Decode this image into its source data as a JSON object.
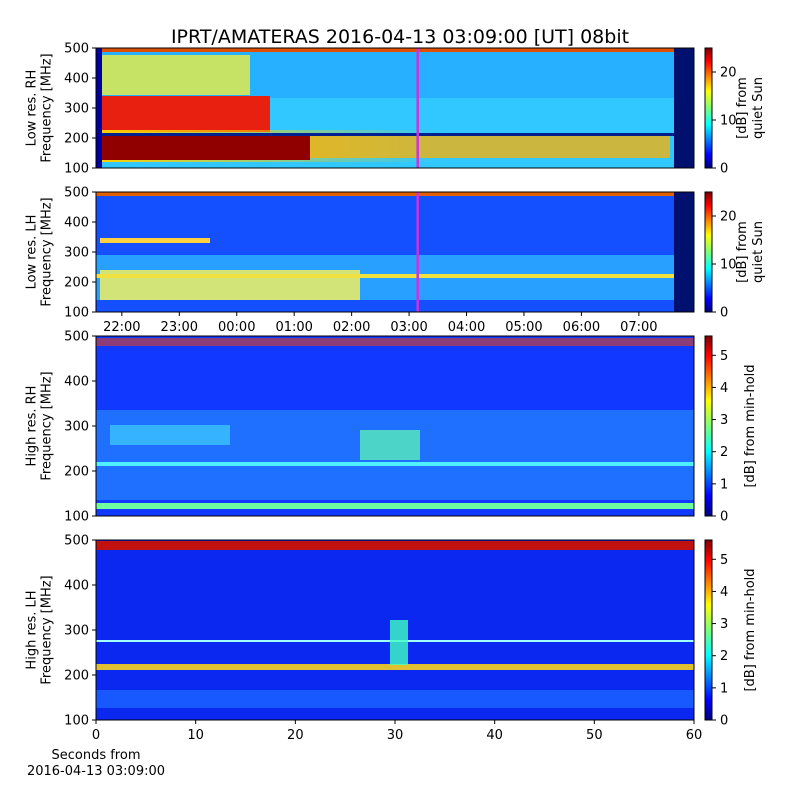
{
  "chart_data": [
    {
      "type": "spectrogram",
      "title": "IPRT/AMATERAS 2016-04-13 03:09:00 [UT]   08bit",
      "ylabel": [
        "Low res. RH",
        "Frequency [MHz]"
      ],
      "xlim": [
        21.55,
        31.96
      ],
      "ylim": [
        100,
        500
      ],
      "yticks": [
        100,
        200,
        300,
        400,
        500
      ],
      "clim": [
        0,
        25
      ],
      "cticks": [
        0,
        10,
        20
      ],
      "clabel": [
        "[dB] from",
        "quiet Sun"
      ],
      "marker_x": 27.15,
      "marker_color": "#cc33dd"
    },
    {
      "type": "spectrogram",
      "ylabel": [
        "Low res. LH",
        "Frequency [MHz]"
      ],
      "xlim": [
        21.55,
        31.96
      ],
      "ylim": [
        100,
        500
      ],
      "yticks": [
        100,
        200,
        300,
        400,
        500
      ],
      "xticks": [
        {
          "value": 22,
          "label": "22:00"
        },
        {
          "value": 23,
          "label": "23:00"
        },
        {
          "value": 24,
          "label": "00:00"
        },
        {
          "value": 25,
          "label": "01:00"
        },
        {
          "value": 26,
          "label": "02:00"
        },
        {
          "value": 27,
          "label": "03:00"
        },
        {
          "value": 28,
          "label": "04:00"
        },
        {
          "value": 29,
          "label": "05:00"
        },
        {
          "value": 30,
          "label": "06:00"
        },
        {
          "value": 31,
          "label": "07:00"
        }
      ],
      "clim": [
        0,
        25
      ],
      "cticks": [
        0,
        10,
        20
      ],
      "clabel": [
        "[dB] from",
        "quiet Sun"
      ],
      "marker_x": 27.15,
      "marker_color": "#cc33dd"
    },
    {
      "type": "spectrogram",
      "ylabel": [
        "High res. RH",
        "Frequency [MHz]"
      ],
      "xlim": [
        0,
        60
      ],
      "ylim": [
        100,
        500
      ],
      "yticks": [
        100,
        200,
        300,
        400,
        500
      ],
      "clim": [
        0,
        5.6
      ],
      "cticks": [
        0,
        1,
        2,
        3,
        4,
        5
      ],
      "clabel": [
        "[dB] from min-hold"
      ]
    },
    {
      "type": "spectrogram",
      "ylabel": [
        "High res. LH",
        "Frequency [MHz]"
      ],
      "xlim": [
        0,
        60
      ],
      "ylim": [
        100,
        500
      ],
      "yticks": [
        100,
        200,
        300,
        400,
        500
      ],
      "xticks": [
        0,
        10,
        20,
        30,
        40,
        50,
        60
      ],
      "xlabel": [
        "Seconds from",
        "2016-04-13 03:09:00"
      ],
      "clim": [
        0,
        5.6
      ],
      "cticks": [
        0,
        1,
        2,
        3,
        4,
        5
      ],
      "clabel": [
        "[dB] from min-hold"
      ]
    }
  ]
}
